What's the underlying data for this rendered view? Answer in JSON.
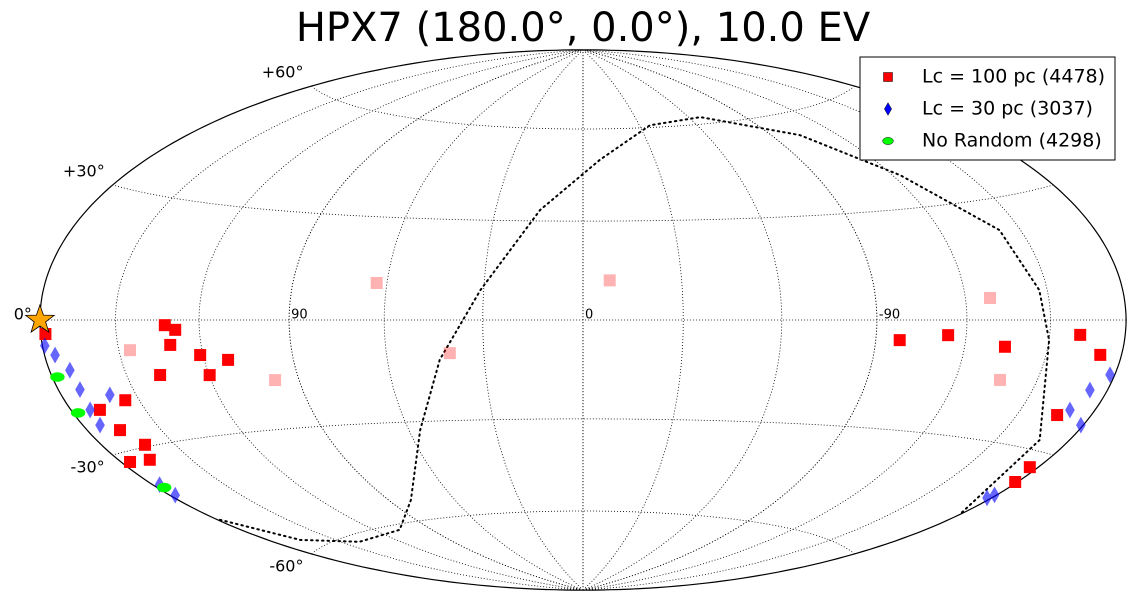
{
  "chart_data": {
    "type": "skymap",
    "projection": "hammer",
    "title": "HPX7 (180.0°, 0.0°), 10.0 EV",
    "xlim": [
      180,
      -180
    ],
    "ylim": [
      -90,
      90
    ],
    "xticks": [
      90,
      0,
      -90
    ],
    "yticks": [
      {
        "value": 60,
        "label": "+60°"
      },
      {
        "value": 30,
        "label": "+30°"
      },
      {
        "value": 0,
        "label": "0°"
      },
      {
        "value": -30,
        "label": "-30°"
      },
      {
        "value": -60,
        "label": "-60°"
      }
    ],
    "grid": true,
    "grid_step": 30,
    "legend": "upper right",
    "series": [
      {
        "name": "Lc = 100 pc (4478)",
        "color": "#ff0000",
        "marker": "square",
        "lon": [
          132,
          130.8,
          137.5,
          128.4,
          121,
          145.8,
          155.4,
          166.4,
          162,
          166.9,
          176.2,
          168,
          119.8,
          111.8,
          98,
          63.2,
          40.4,
          -8.1,
          -128.6,
          -97.8,
          -113.8,
          -134.2,
          -161.7,
          -136.1,
          -165.9,
          -179,
          -176.4,
          -171.2,
          178
        ],
        "lat": [
          -1.3,
          -6.3,
          -13.7,
          -2.5,
          -9.1,
          -7.3,
          -19,
          -25.4,
          -29.5,
          -32.8,
          -32.2,
          -20.4,
          -14.4,
          -10.6,
          -16.5,
          10.7,
          -9.8,
          11.9,
          5.6,
          -5.5,
          -4,
          -6.7,
          -3.4,
          -15,
          -21.8,
          -37,
          -33.5,
          -7.7,
          -3
        ],
        "alpha": [
          1,
          1,
          1,
          1,
          1,
          0.3,
          1,
          1,
          1,
          1,
          1,
          1,
          1,
          1,
          0.3,
          0.3,
          0.3,
          0.3,
          0.3,
          1,
          1,
          1,
          1,
          0.3,
          1,
          1,
          1,
          1,
          1
        ]
      },
      {
        "name": "Lc = 30 pc (3037)",
        "color": "#0000ff",
        "marker": "diamond",
        "lon": [
          171.5,
          171,
          172,
          175.6,
          172.8,
          160.2,
          179,
          177,
          177.6,
          -169.6,
          -172.7,
          -178,
          -179,
          -179,
          -178
        ],
        "lat": [
          -11.1,
          -15.5,
          -20.1,
          -7.6,
          -23.6,
          -17.4,
          -5.5,
          -38,
          -40.8,
          -20.3,
          -15.5,
          -11.8,
          -23,
          -40.5,
          -41.5
        ],
        "alpha": [
          0.6,
          0.6,
          0.6,
          0.6,
          0.6,
          0.6,
          0.6,
          0.6,
          0.6,
          0.6,
          0.6,
          0.6,
          0.6,
          0.6,
          0.6
        ]
      },
      {
        "name": "No Random (4298)",
        "color": "#00ff00",
        "marker": "circle",
        "lon": [
          177.8,
          177.9,
          177
        ],
        "lat": [
          -12.3,
          -20.3,
          -38.8
        ],
        "alpha": [
          1,
          1,
          1
        ]
      }
    ],
    "reference_curve": {
      "color": "#000000",
      "lon": [
        179,
        166,
        141,
        107,
        80,
        56,
        43.7,
        31,
        14.7,
        -7.1,
        -35.7,
        -66.4,
        -103,
        -123,
        -142,
        -147,
        -150,
        -167.6,
        -180
      ],
      "lat": [
        -47.9,
        -57.2,
        -62,
        -61.6,
        -53.5,
        -32.5,
        -11.7,
        8.9,
        33.4,
        49.6,
        60.8,
        62.3,
        53.3,
        38.9,
        22.3,
        7.2,
        -4.8,
        -27.7,
        -46.1
      ]
    },
    "source": {
      "lon": 180,
      "lat": 0,
      "color": "#ffa500"
    }
  }
}
